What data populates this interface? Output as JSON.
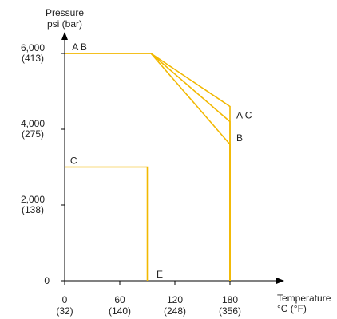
{
  "chart_data": {
    "type": "line",
    "ylabel": [
      "Pressure",
      "psi (bar)"
    ],
    "xlabel": [
      "Temperature",
      "°C (°F)"
    ],
    "xlim": [
      0,
      200
    ],
    "ylim": [
      0,
      6800
    ],
    "x_ticks": [
      {
        "value": 0,
        "label": "0",
        "sub": "(32)"
      },
      {
        "value": 60,
        "label": "60",
        "sub": "(140)"
      },
      {
        "value": 120,
        "label": "120",
        "sub": "(248)"
      },
      {
        "value": 180,
        "label": "180",
        "sub": "(356)"
      }
    ],
    "y_ticks": [
      {
        "value": 0,
        "label": "0",
        "sub": ""
      },
      {
        "value": 2000,
        "label": "2,000",
        "sub": "(138)"
      },
      {
        "value": 4000,
        "label": "4,000",
        "sub": "(275)"
      },
      {
        "value": 6000,
        "label": "6,000",
        "sub": "(413)"
      }
    ],
    "line_color": "#f2b800",
    "series": [
      {
        "points": [
          [
            0,
            6000
          ],
          [
            94,
            6000
          ],
          [
            180,
            4200
          ],
          [
            180,
            0
          ]
        ]
      },
      {
        "points": [
          [
            0,
            6000
          ],
          [
            94,
            6000
          ],
          [
            180,
            3600
          ],
          [
            180,
            0
          ]
        ]
      },
      {
        "points": [
          [
            94,
            6000
          ],
          [
            180,
            4600
          ],
          [
            180,
            0
          ]
        ]
      },
      {
        "points": [
          [
            0,
            3000
          ],
          [
            90,
            3000
          ],
          [
            90,
            0
          ]
        ]
      }
    ],
    "annotations": [
      {
        "text": "A B",
        "x": 8,
        "y": 6000,
        "anchor": "start"
      },
      {
        "text": "A C",
        "x": 187,
        "y": 4200,
        "anchor": "start"
      },
      {
        "text": "B",
        "x": 187,
        "y": 3600,
        "anchor": "start"
      },
      {
        "text": "C",
        "x": 6,
        "y": 3000,
        "anchor": "start"
      },
      {
        "text": "E",
        "x": 100,
        "y": 0,
        "anchor": "start"
      }
    ]
  }
}
